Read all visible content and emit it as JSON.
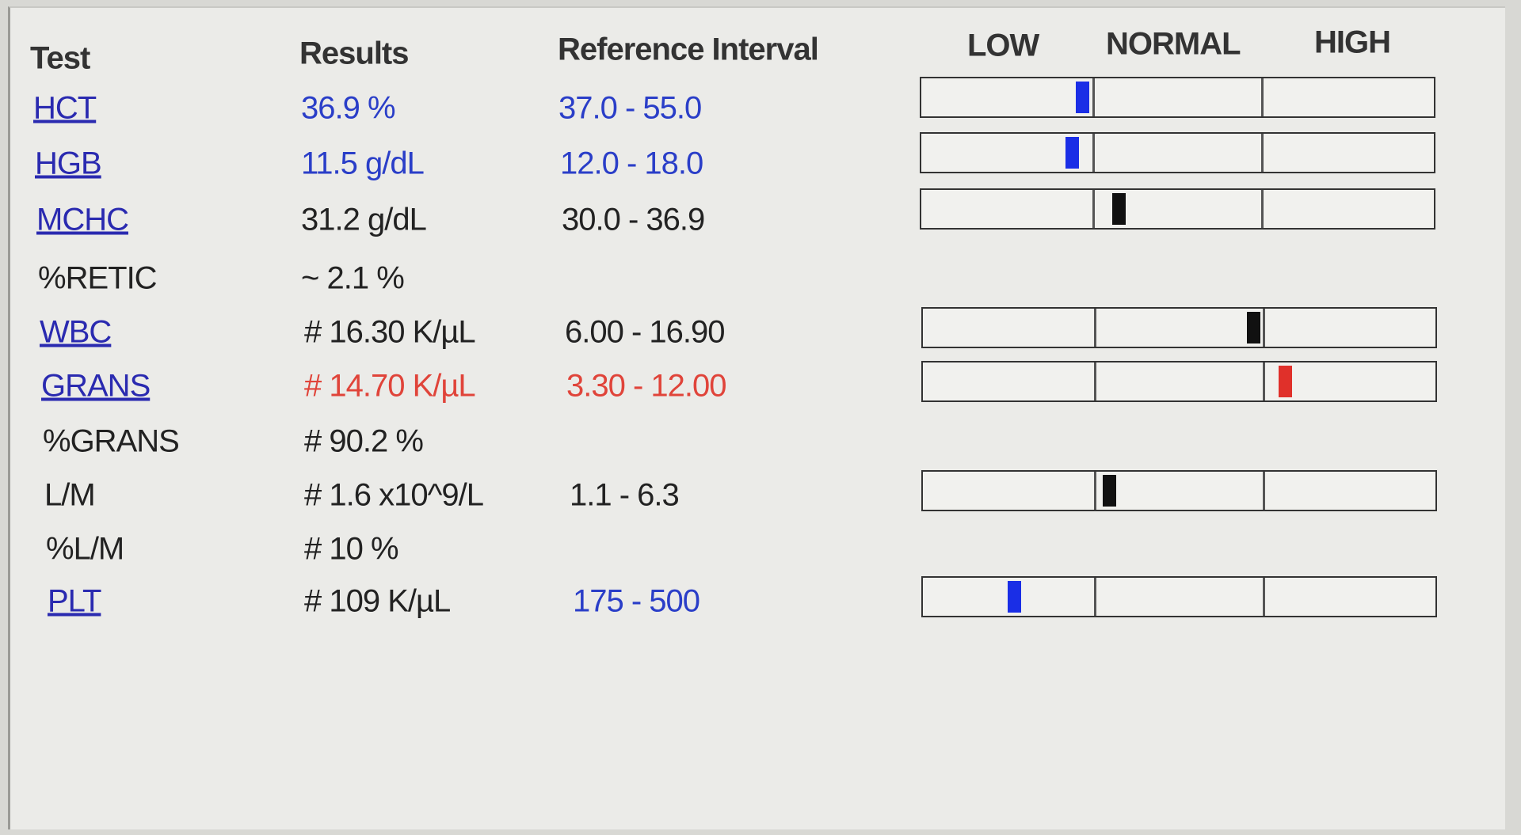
{
  "header": {
    "test": "Test",
    "results": "Results",
    "reference": "Reference Interval",
    "low": "LOW",
    "normal": "NORMAL",
    "high": "HIGH"
  },
  "table": {
    "rows": [
      {
        "test": "HCT",
        "result": "36.9 %",
        "reference": "37.0 - 55.0"
      },
      {
        "test": "HGB",
        "result": "11.5 g/dL",
        "reference": "12.0 - 18.0"
      },
      {
        "test": "MCHC",
        "result": "31.2 g/dL",
        "reference": "30.0 - 36.9"
      },
      {
        "test": "%RETIC",
        "result": "~ 2.1 %"
      },
      {
        "test": "WBC",
        "result": "# 16.30 K/µL",
        "reference": "6.00 - 16.90"
      },
      {
        "test": "GRANS",
        "result": "# 14.70 K/µL",
        "reference": "3.30 - 12.00"
      },
      {
        "test": "%GRANS",
        "result": "# 90.2 %"
      },
      {
        "test": "L/M",
        "result": "# 1.6 x10^9/L",
        "reference": "1.1 - 6.3"
      },
      {
        "test": "%L/M",
        "result": "# 10 %"
      },
      {
        "test": "PLT",
        "result": "# 109 K/µL",
        "reference": "175 - 500"
      }
    ]
  }
}
